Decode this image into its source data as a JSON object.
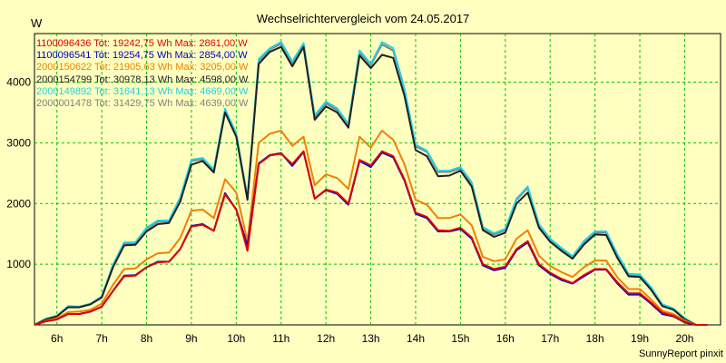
{
  "chart_data": {
    "type": "line",
    "title": "Wechselrichtervergleich vom 24.05.2017",
    "ylabel": "W",
    "xlabel": "",
    "ylim": [
      0,
      4800
    ],
    "xlim": [
      5.5,
      20.8
    ],
    "yticks": [
      1000,
      2000,
      3000,
      4000
    ],
    "xticks": [
      6,
      7,
      8,
      9,
      10,
      11,
      12,
      13,
      14,
      15,
      16,
      17,
      18,
      19,
      20
    ],
    "xtick_labels": [
      "6h",
      "7h",
      "8h",
      "9h",
      "10h",
      "11h",
      "12h",
      "13h",
      "14h",
      "15h",
      "16h",
      "17h",
      "18h",
      "19h",
      "20h"
    ],
    "grid": true,
    "footer": "SunnyReport pinxit",
    "x": [
      5.5,
      5.75,
      6.0,
      6.25,
      6.5,
      6.75,
      7.0,
      7.25,
      7.5,
      7.75,
      8.0,
      8.25,
      8.5,
      8.75,
      9.0,
      9.25,
      9.5,
      9.75,
      10.0,
      10.25,
      10.5,
      10.75,
      11.0,
      11.25,
      11.5,
      11.75,
      12.0,
      12.25,
      12.5,
      12.75,
      13.0,
      13.25,
      13.5,
      13.75,
      14.0,
      14.25,
      14.5,
      14.75,
      15.0,
      15.25,
      15.5,
      15.75,
      16.0,
      16.25,
      16.5,
      16.75,
      17.0,
      17.25,
      17.5,
      17.75,
      18.0,
      18.25,
      18.5,
      18.75,
      19.0,
      19.25,
      19.5,
      19.75,
      20.0,
      20.25,
      20.5
    ],
    "series": [
      {
        "name": "1100096436",
        "legend": "1100096436 Tot: 19242,75 Wh Max: 2861,00 W",
        "color": "#e00000",
        "values": [
          0,
          60,
          90,
          180,
          180,
          220,
          300,
          560,
          800,
          810,
          950,
          1030,
          1040,
          1250,
          1620,
          1650,
          1550,
          2150,
          1900,
          1220,
          2650,
          2790,
          2820,
          2650,
          2860,
          2080,
          2230,
          2180,
          2000,
          2720,
          2630,
          2860,
          2780,
          2400,
          1850,
          1780,
          1560,
          1550,
          1600,
          1440,
          1000,
          920,
          960,
          1250,
          1380,
          1000,
          860,
          760,
          690,
          820,
          920,
          920,
          700,
          520,
          520,
          370,
          200,
          150,
          50,
          0,
          0
        ]
      },
      {
        "name": "1100096541",
        "legend": "1100096541 Tot: 19254,75 Wh Max: 2854,00 W",
        "color": "#0000c8",
        "values": [
          0,
          60,
          90,
          180,
          180,
          220,
          300,
          560,
          810,
          820,
          950,
          1040,
          1040,
          1250,
          1630,
          1660,
          1550,
          2170,
          1900,
          1300,
          2660,
          2800,
          2830,
          2620,
          2850,
          2080,
          2220,
          2160,
          1980,
          2700,
          2600,
          2840,
          2760,
          2380,
          1830,
          1760,
          1540,
          1540,
          1580,
          1420,
          980,
          900,
          940,
          1230,
          1360,
          980,
          840,
          740,
          680,
          800,
          910,
          910,
          680,
          500,
          500,
          350,
          180,
          140,
          40,
          0,
          0
        ]
      },
      {
        "name": "2000150622",
        "legend": "2000150622 Tot: 21905,63 Wh Max: 3205,00 W",
        "color": "#f08000",
        "values": [
          0,
          70,
          110,
          210,
          220,
          250,
          350,
          660,
          920,
          930,
          1080,
          1180,
          1190,
          1430,
          1880,
          1900,
          1760,
          2400,
          2180,
          1380,
          3000,
          3150,
          3200,
          2950,
          3100,
          2300,
          2480,
          2420,
          2240,
          3100,
          2920,
          3200,
          3050,
          2650,
          2060,
          1980,
          1760,
          1760,
          1820,
          1640,
          1120,
          1050,
          1080,
          1420,
          1560,
          1140,
          970,
          870,
          790,
          950,
          1060,
          1060,
          780,
          590,
          590,
          420,
          230,
          180,
          70,
          0,
          0
        ]
      },
      {
        "name": "2000154799",
        "legend": "2000154799 Tot: 30978,13 Wh Max: 4598,00 W",
        "color": "#202020",
        "values": [
          0,
          90,
          140,
          290,
          290,
          340,
          450,
          950,
          1310,
          1320,
          1540,
          1660,
          1680,
          2030,
          2640,
          2700,
          2510,
          3500,
          3100,
          2060,
          4300,
          4500,
          4580,
          4260,
          4580,
          3380,
          3600,
          3500,
          3250,
          4440,
          4230,
          4450,
          4400,
          3780,
          2880,
          2780,
          2450,
          2460,
          2540,
          2280,
          1560,
          1450,
          1520,
          2000,
          2180,
          1600,
          1370,
          1220,
          1090,
          1320,
          1490,
          1480,
          1100,
          800,
          790,
          580,
          310,
          250,
          90,
          0,
          0
        ]
      },
      {
        "name": "2000149892",
        "legend": "2000149892 Tot: 31641,13 Wh Max: 4669,00 W",
        "color": "#20d0e8",
        "values": [
          0,
          100,
          150,
          310,
          300,
          350,
          470,
          990,
          1360,
          1360,
          1600,
          1720,
          1720,
          2100,
          2720,
          2750,
          2560,
          3560,
          3150,
          2100,
          4380,
          4560,
          4660,
          4340,
          4640,
          3450,
          3680,
          3570,
          3310,
          4520,
          4300,
          4660,
          4560,
          3900,
          2970,
          2870,
          2540,
          2540,
          2600,
          2350,
          1610,
          1510,
          1580,
          2080,
          2280,
          1660,
          1420,
          1270,
          1130,
          1380,
          1540,
          1540,
          1160,
          840,
          830,
          620,
          340,
          270,
          110,
          0,
          0
        ]
      },
      {
        "name": "2000001478",
        "legend": "2000001478 Tot: 31429,75 Wh Max: 4639,00 W",
        "color": "#808080",
        "values": [
          0,
          95,
          145,
          300,
          295,
          345,
          460,
          970,
          1340,
          1345,
          1580,
          1700,
          1705,
          2080,
          2700,
          2730,
          2540,
          3520,
          3120,
          2080,
          4350,
          4540,
          4630,
          4310,
          4610,
          3420,
          3650,
          3540,
          3290,
          4490,
          4280,
          4620,
          4520,
          3880,
          2940,
          2850,
          2520,
          2520,
          2580,
          2330,
          1590,
          1490,
          1560,
          2060,
          2260,
          1640,
          1400,
          1250,
          1110,
          1360,
          1520,
          1520,
          1140,
          820,
          810,
          600,
          320,
          260,
          100,
          0,
          0
        ]
      }
    ]
  }
}
